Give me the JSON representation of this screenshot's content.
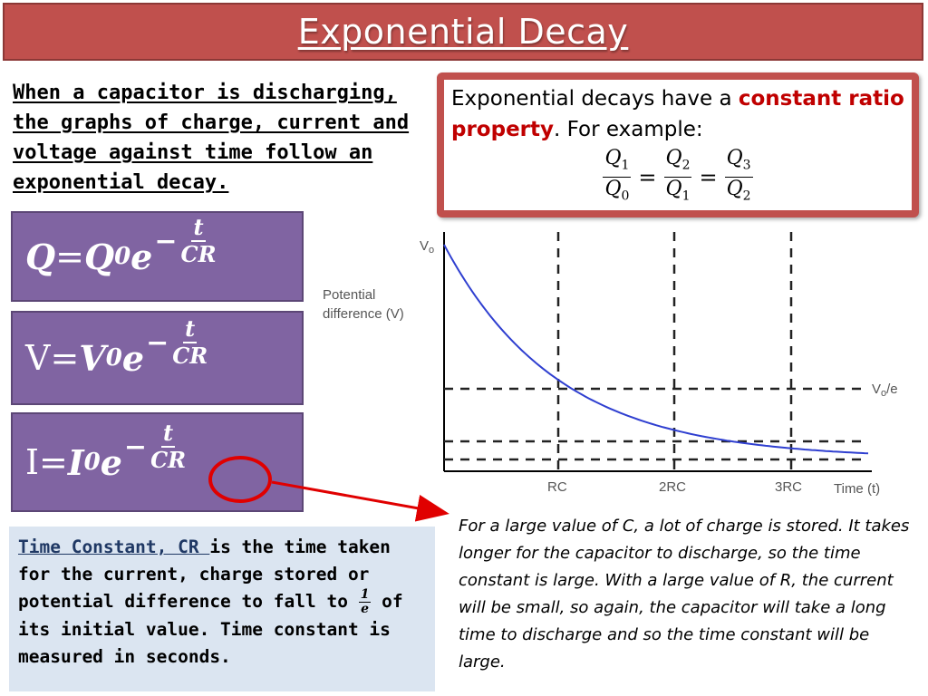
{
  "title": "Exponential Decay",
  "intro": "When a capacitor is discharging, the graphs of charge, current and voltage against time follow an exponential decay.",
  "ratio": {
    "pre": "Exponential decays have a ",
    "highlight": "constant ratio property",
    "post": ". For example:",
    "q1": "Q",
    "s1": "1",
    "q0": "Q",
    "s0": "0",
    "q2": "Q",
    "s2": "2",
    "q1b": "Q",
    "s1b": "1",
    "q3": "Q",
    "s3": "3",
    "q2b": "Q",
    "s2b": "2",
    "eq": "="
  },
  "formulas": {
    "charge": {
      "lhs": "Q",
      "eq": " = ",
      "base": "Q",
      "sub": "0",
      "e": "e",
      "minus": "−",
      "num": "t",
      "den": "CR"
    },
    "voltage": {
      "lhs": "V",
      "eq": "= ",
      "base": "V",
      "sub": "0",
      "e": "e",
      "minus": "−",
      "num": "t",
      "den": "CR"
    },
    "current": {
      "lhs": "I",
      "eq": "= ",
      "base": "I",
      "sub": "0",
      "e": "e",
      "minus": "−",
      "num": "t",
      "den": "CR"
    }
  },
  "time_constant": {
    "title": "Time Constant, CR ",
    "text1": "is the time taken for the current, charge stored or potential difference to fall to ",
    "frac_num": "1",
    "frac_den": "e",
    "text2": " of its initial value. Time constant is measured in seconds."
  },
  "graph": {
    "y_label_line1": "Potential",
    "y_label_line2": "difference (V)",
    "v0_label": "V",
    "v0_sub": "o",
    "ve_label": "V",
    "ve_sub": "o",
    "ve_suffix": "/e",
    "x_label": "Time (t)",
    "ticks": [
      "RC",
      "2RC",
      "3RC"
    ]
  },
  "note": "For a large value of C, a lot of charge is stored. It takes longer for the capacitor to discharge, so the time constant is large. With a large value of R, the current will be small, so again, the capacitor will take a long time to discharge and so the time constant will be large.",
  "colors": {
    "title_bar": "#c0504d",
    "formula_box": "#8064a2",
    "curve": "#2f3fd0",
    "highlight": "#c00000",
    "tc_box": "#dbe5f1"
  }
}
